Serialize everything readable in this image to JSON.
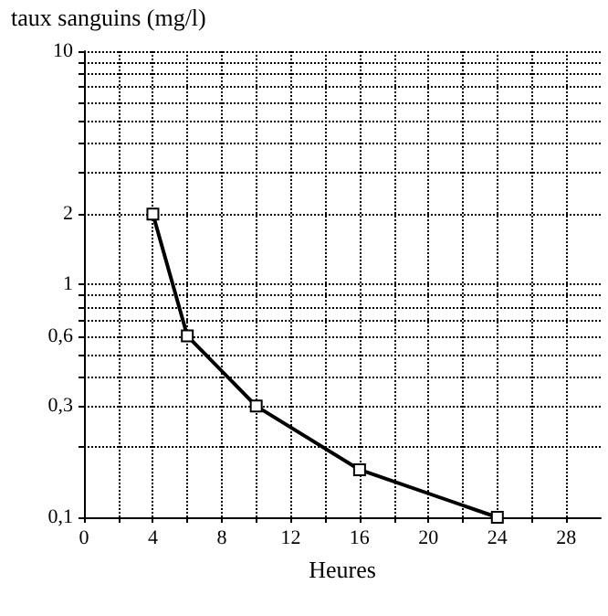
{
  "chart_data": {
    "type": "line",
    "ylabel": "taux sanguins (mg/l)",
    "xlabel": "Heures",
    "x": [
      4,
      6,
      10,
      16,
      24
    ],
    "series": [
      {
        "color": "#000000",
        "values": [
          2,
          0.6,
          0.3,
          0.16,
          0.1
        ]
      }
    ],
    "log": "y",
    "grid": true,
    "marker": "square",
    "line_style": "solid",
    "xlim": [
      0,
      30
    ],
    "xticks": [
      0,
      {
        "value": 2,
        "label": null
      },
      4,
      {
        "value": 6,
        "label": null
      },
      8,
      {
        "value": 10,
        "label": null
      },
      12,
      {
        "value": 14,
        "label": null
      },
      16,
      {
        "value": 18,
        "label": null
      },
      20,
      {
        "value": 22,
        "label": null
      },
      24,
      {
        "value": 26,
        "label": null
      },
      28
    ],
    "ylim": [
      0.1,
      10
    ],
    "yticks": [
      {
        "value": 0.1,
        "label": "0,1"
      },
      {
        "value": 0.2,
        "label": null
      },
      {
        "value": 0.3,
        "label": "0,3"
      },
      {
        "value": 0.4,
        "label": null
      },
      {
        "value": 0.5,
        "label": null
      },
      {
        "value": 0.6,
        "label": "0,6"
      },
      {
        "value": 0.7,
        "label": null
      },
      {
        "value": 0.8,
        "label": null
      },
      {
        "value": 0.9,
        "label": null
      },
      1,
      2,
      {
        "value": 3,
        "label": null
      },
      {
        "value": 4,
        "label": null
      },
      {
        "value": 5,
        "label": null
      },
      {
        "value": 6,
        "label": null
      },
      {
        "value": 7,
        "label": null
      },
      {
        "value": 8,
        "label": null
      },
      {
        "value": 9,
        "label": null
      },
      10
    ]
  }
}
